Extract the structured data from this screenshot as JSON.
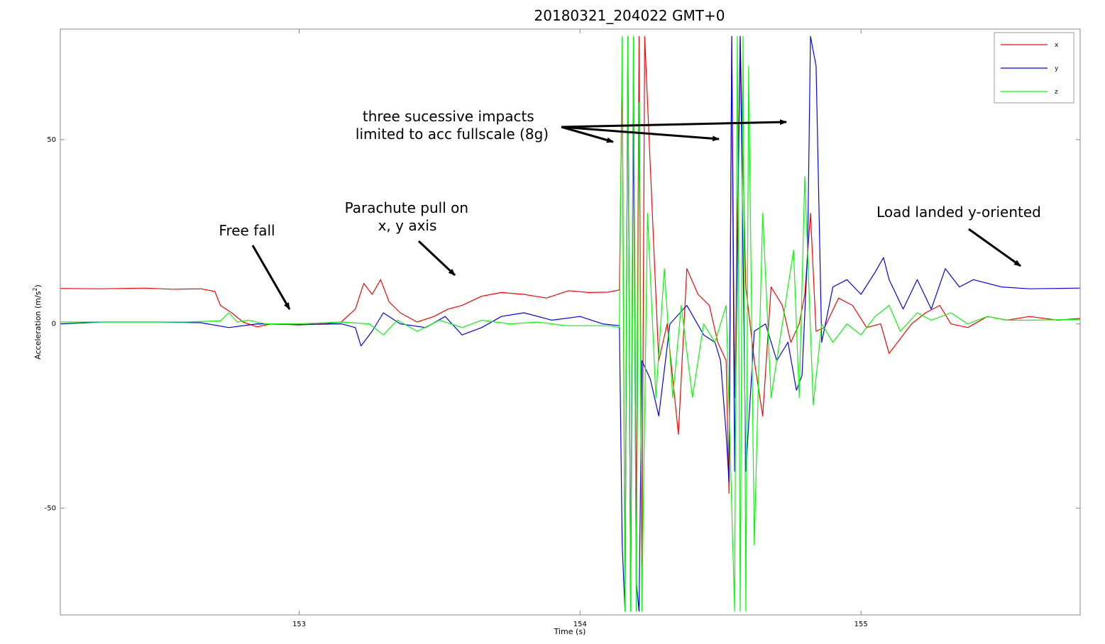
{
  "chart_data": {
    "type": "line",
    "title": "20180321_204022 GMT+0",
    "xlabel": "Time (s)",
    "ylabel_main": "Acceleration (m/s",
    "ylabel_sup": "2",
    "ylabel_close": ")",
    "xlim": [
      152.15,
      155.78
    ],
    "ylim": [
      -79,
      80
    ],
    "xticks": [
      153,
      154,
      155
    ],
    "xtick_labels": [
      "153",
      "154",
      "155"
    ],
    "yticks": [
      -50,
      0,
      50
    ],
    "ytick_labels": [
      "-50",
      "0",
      "50"
    ],
    "legend_position": "top-right",
    "series": [
      {
        "name": "x",
        "color": "#ff0000",
        "points": [
          [
            152.15,
            9.6
          ],
          [
            152.3,
            9.5
          ],
          [
            152.45,
            9.7
          ],
          [
            152.55,
            9.4
          ],
          [
            152.65,
            9.5
          ],
          [
            152.7,
            8.8
          ],
          [
            152.72,
            5
          ],
          [
            152.76,
            3
          ],
          [
            152.8,
            0.5
          ],
          [
            152.85,
            -0.8
          ],
          [
            152.9,
            0
          ],
          [
            153.0,
            -0.3
          ],
          [
            153.1,
            0.1
          ],
          [
            153.15,
            0.5
          ],
          [
            153.2,
            4
          ],
          [
            153.23,
            11
          ],
          [
            153.26,
            8
          ],
          [
            153.29,
            12
          ],
          [
            153.32,
            6
          ],
          [
            153.36,
            3
          ],
          [
            153.42,
            0.5
          ],
          [
            153.48,
            2
          ],
          [
            153.53,
            4
          ],
          [
            153.58,
            5
          ],
          [
            153.65,
            7.5
          ],
          [
            153.72,
            8.5
          ],
          [
            153.8,
            8
          ],
          [
            153.88,
            7
          ],
          [
            153.96,
            9
          ],
          [
            154.03,
            8.5
          ],
          [
            154.1,
            8.6
          ],
          [
            154.14,
            9.2
          ],
          [
            154.15,
            70
          ],
          [
            154.16,
            -78
          ],
          [
            154.17,
            78
          ],
          [
            154.18,
            -78
          ],
          [
            154.19,
            78
          ],
          [
            154.2,
            -60
          ],
          [
            154.21,
            78
          ],
          [
            154.22,
            -70
          ],
          [
            154.23,
            78
          ],
          [
            154.26,
            25
          ],
          [
            154.28,
            -10
          ],
          [
            154.31,
            0
          ],
          [
            154.35,
            -30
          ],
          [
            154.38,
            15
          ],
          [
            154.42,
            8
          ],
          [
            154.46,
            5
          ],
          [
            154.49,
            -5
          ],
          [
            154.52,
            -10
          ],
          [
            154.53,
            -46
          ],
          [
            154.54,
            78
          ],
          [
            154.55,
            -20
          ],
          [
            154.57,
            78
          ],
          [
            154.59,
            10
          ],
          [
            154.62,
            -10
          ],
          [
            154.65,
            -25
          ],
          [
            154.68,
            10
          ],
          [
            154.72,
            5
          ],
          [
            154.75,
            -5
          ],
          [
            154.78,
            0
          ],
          [
            154.8,
            8
          ],
          [
            154.82,
            30
          ],
          [
            154.84,
            -2
          ],
          [
            154.87,
            -1
          ],
          [
            154.92,
            7
          ],
          [
            154.97,
            5
          ],
          [
            155.02,
            -1
          ],
          [
            155.07,
            0
          ],
          [
            155.1,
            -8
          ],
          [
            155.13,
            -5
          ],
          [
            155.18,
            0
          ],
          [
            155.23,
            3
          ],
          [
            155.28,
            5
          ],
          [
            155.32,
            0
          ],
          [
            155.38,
            -1
          ],
          [
            155.45,
            2
          ],
          [
            155.52,
            1
          ],
          [
            155.6,
            2
          ],
          [
            155.7,
            1
          ],
          [
            155.78,
            1.5
          ]
        ]
      },
      {
        "name": "y",
        "color": "#0000ff",
        "points": [
          [
            152.15,
            0
          ],
          [
            152.3,
            0.5
          ],
          [
            152.5,
            0.5
          ],
          [
            152.65,
            0.3
          ],
          [
            152.75,
            -1
          ],
          [
            152.85,
            0
          ],
          [
            153.0,
            -0.2
          ],
          [
            153.15,
            0
          ],
          [
            153.2,
            -1
          ],
          [
            153.22,
            -6
          ],
          [
            153.26,
            -2
          ],
          [
            153.3,
            3
          ],
          [
            153.36,
            0
          ],
          [
            153.45,
            -1
          ],
          [
            153.52,
            2
          ],
          [
            153.58,
            -3
          ],
          [
            153.65,
            -1
          ],
          [
            153.72,
            2
          ],
          [
            153.8,
            3
          ],
          [
            153.9,
            1
          ],
          [
            154.0,
            2
          ],
          [
            154.08,
            0
          ],
          [
            154.14,
            -0.5
          ],
          [
            154.15,
            -60
          ],
          [
            154.16,
            -78
          ],
          [
            154.17,
            78
          ],
          [
            154.18,
            -78
          ],
          [
            154.19,
            60
          ],
          [
            154.2,
            -70
          ],
          [
            154.21,
            -78
          ],
          [
            154.22,
            -10
          ],
          [
            154.25,
            -15
          ],
          [
            154.28,
            -25
          ],
          [
            154.32,
            0
          ],
          [
            154.38,
            5
          ],
          [
            154.44,
            -3
          ],
          [
            154.48,
            -5
          ],
          [
            154.5,
            -10
          ],
          [
            154.52,
            -30
          ],
          [
            154.53,
            -43
          ],
          [
            154.54,
            78
          ],
          [
            154.55,
            -40
          ],
          [
            154.57,
            78
          ],
          [
            154.59,
            -40
          ],
          [
            154.62,
            -2
          ],
          [
            154.66,
            0
          ],
          [
            154.7,
            -10
          ],
          [
            154.74,
            -5
          ],
          [
            154.77,
            -18
          ],
          [
            154.79,
            -14
          ],
          [
            154.81,
            20
          ],
          [
            154.82,
            78
          ],
          [
            154.84,
            70
          ],
          [
            154.86,
            -5
          ],
          [
            154.9,
            10
          ],
          [
            154.95,
            12
          ],
          [
            155.0,
            8
          ],
          [
            155.05,
            14
          ],
          [
            155.08,
            18
          ],
          [
            155.1,
            12
          ],
          [
            155.15,
            4
          ],
          [
            155.2,
            12
          ],
          [
            155.25,
            4
          ],
          [
            155.3,
            15
          ],
          [
            155.35,
            10
          ],
          [
            155.4,
            12
          ],
          [
            155.5,
            10
          ],
          [
            155.6,
            9.5
          ],
          [
            155.78,
            9.7
          ]
        ]
      },
      {
        "name": "z",
        "color": "#00ff00",
        "points": [
          [
            152.15,
            0.5
          ],
          [
            152.4,
            0.5
          ],
          [
            152.6,
            0.5
          ],
          [
            152.72,
            0.8
          ],
          [
            152.75,
            3
          ],
          [
            152.78,
            0.5
          ],
          [
            152.82,
            1
          ],
          [
            152.88,
            0
          ],
          [
            153.0,
            0
          ],
          [
            153.15,
            0.5
          ],
          [
            153.25,
            0
          ],
          [
            153.3,
            -3
          ],
          [
            153.35,
            1
          ],
          [
            153.42,
            -2
          ],
          [
            153.5,
            1
          ],
          [
            153.58,
            -1
          ],
          [
            153.65,
            1
          ],
          [
            153.75,
            0
          ],
          [
            153.85,
            0.5
          ],
          [
            153.95,
            -0.5
          ],
          [
            154.1,
            -0.5
          ],
          [
            154.14,
            -1
          ],
          [
            154.15,
            78
          ],
          [
            154.16,
            -78
          ],
          [
            154.17,
            78
          ],
          [
            154.18,
            -78
          ],
          [
            154.19,
            78
          ],
          [
            154.2,
            -78
          ],
          [
            154.21,
            60
          ],
          [
            154.22,
            -78
          ],
          [
            154.24,
            30
          ],
          [
            154.27,
            -20
          ],
          [
            154.3,
            15
          ],
          [
            154.33,
            -20
          ],
          [
            154.36,
            5
          ],
          [
            154.4,
            -20
          ],
          [
            154.44,
            0
          ],
          [
            154.48,
            -5
          ],
          [
            154.52,
            5
          ],
          [
            154.55,
            -78
          ],
          [
            154.56,
            78
          ],
          [
            154.57,
            -78
          ],
          [
            154.58,
            78
          ],
          [
            154.59,
            -78
          ],
          [
            154.6,
            70
          ],
          [
            154.62,
            -60
          ],
          [
            154.65,
            30
          ],
          [
            154.68,
            -20
          ],
          [
            154.72,
            0
          ],
          [
            154.76,
            20
          ],
          [
            154.78,
            -20
          ],
          [
            154.8,
            40
          ],
          [
            154.83,
            -22
          ],
          [
            154.86,
            0
          ],
          [
            154.9,
            -5
          ],
          [
            154.95,
            0
          ],
          [
            155.0,
            -3
          ],
          [
            155.05,
            2
          ],
          [
            155.1,
            5
          ],
          [
            155.14,
            -2
          ],
          [
            155.2,
            3
          ],
          [
            155.25,
            1
          ],
          [
            155.32,
            3
          ],
          [
            155.38,
            0
          ],
          [
            155.45,
            2
          ],
          [
            155.52,
            1
          ],
          [
            155.6,
            1
          ],
          [
            155.78,
            1.2
          ]
        ]
      }
    ],
    "annotations": [
      {
        "lines": [
          "three sucessive impacts",
          "limited to acc fullscale (8g)"
        ]
      },
      {
        "lines": [
          "Parachute pull on",
          "x, y axis"
        ]
      },
      {
        "lines": [
          "Free fall"
        ]
      },
      {
        "lines": [
          "Load landed y-oriented"
        ]
      }
    ]
  }
}
